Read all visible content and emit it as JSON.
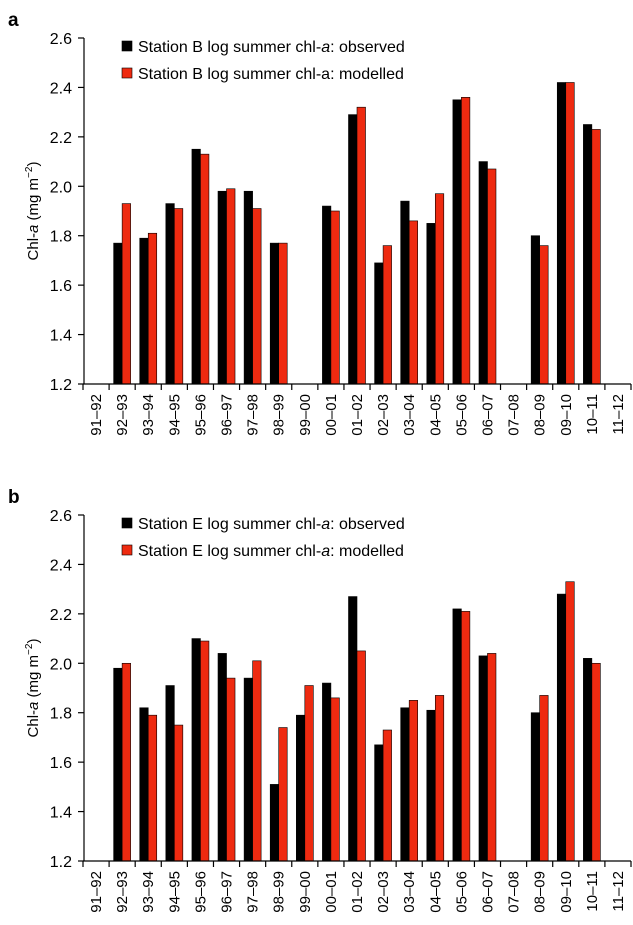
{
  "colors": {
    "observed": "#000000",
    "modelled": "#ee2a10",
    "axis": "#000000",
    "background": "#ffffff"
  },
  "chart_data": [
    {
      "type": "bar",
      "panel_label": "a",
      "ylabel_prefix": "Chl-",
      "ylabel_italic": "a",
      "ylabel_units": " (mg m",
      "ylabel_sup": "−2",
      "ylabel_close": ")",
      "ylim": [
        1.2,
        2.6
      ],
      "yticks": [
        "1.2",
        "1.4",
        "1.6",
        "1.8",
        "2.0",
        "2.2",
        "2.4",
        "2.6"
      ],
      "categories": [
        "91–92",
        "92–93",
        "93–94",
        "94–95",
        "95–96",
        "96–97",
        "97–98",
        "98–99",
        "99–00",
        "00–01",
        "01–02",
        "02–03",
        "03–04",
        "04–05",
        "05–06",
        "06–07",
        "07–08",
        "08–09",
        "09–10",
        "10–11",
        "11–12"
      ],
      "legend": [
        {
          "prefix": "Station B log summer chl-",
          "italic": "a",
          "suffix": ": observed"
        },
        {
          "prefix": "Station B log summer chl-a: modelled",
          "italic": "",
          "suffix": ""
        }
      ],
      "legend_position": "top-left",
      "grid": false,
      "series": [
        {
          "name": "Station B log summer chl-a: observed",
          "values": [
            null,
            1.77,
            1.79,
            1.93,
            2.15,
            1.98,
            1.98,
            1.77,
            null,
            1.92,
            2.29,
            1.69,
            1.94,
            1.85,
            2.35,
            2.1,
            null,
            1.8,
            2.42,
            2.25,
            null
          ]
        },
        {
          "name": "Station B log summer chl-a: modelled",
          "values": [
            null,
            1.93,
            1.81,
            1.91,
            2.13,
            1.99,
            1.91,
            1.77,
            null,
            1.9,
            2.32,
            1.76,
            1.86,
            1.97,
            2.36,
            2.07,
            null,
            1.76,
            2.42,
            2.23,
            null
          ]
        }
      ]
    },
    {
      "type": "bar",
      "panel_label": "b",
      "ylabel_prefix": "Chl-",
      "ylabel_italic": "a",
      "ylabel_units": " (mg m",
      "ylabel_sup": "−2",
      "ylabel_close": ")",
      "ylim": [
        1.2,
        2.6
      ],
      "yticks": [
        "1.2",
        "1.4",
        "1.6",
        "1.8",
        "2.0",
        "2.2",
        "2.4",
        "2.6"
      ],
      "categories": [
        "91–92",
        "92–93",
        "93–94",
        "94–95",
        "95–96",
        "96–97",
        "97–98",
        "98–99",
        "99–00",
        "00–01",
        "01–02",
        "02–03",
        "03–04",
        "04–05",
        "05–06",
        "06–07",
        "07–08",
        "08–09",
        "09–10",
        "10–11",
        "11–12"
      ],
      "legend": [
        {
          "prefix": "Station E log summer chl-",
          "italic": "a",
          "suffix": ": observed"
        },
        {
          "prefix": "Station E log summer chl-",
          "italic": "a",
          "suffix": ": modelled"
        }
      ],
      "legend_position": "top-left",
      "grid": false,
      "series": [
        {
          "name": "Station E log summer chl-a: observed",
          "values": [
            null,
            1.98,
            1.82,
            1.91,
            2.1,
            2.04,
            1.94,
            1.51,
            1.79,
            1.92,
            2.27,
            1.67,
            1.82,
            1.81,
            2.22,
            2.03,
            null,
            1.8,
            2.28,
            2.02,
            null
          ]
        },
        {
          "name": "Station E log summer chl-a: modelled",
          "values": [
            null,
            2.0,
            1.79,
            1.75,
            2.09,
            1.94,
            2.01,
            1.74,
            1.91,
            1.86,
            2.05,
            1.73,
            1.85,
            1.87,
            2.21,
            2.04,
            null,
            1.87,
            2.33,
            2.0,
            null
          ]
        }
      ]
    }
  ]
}
